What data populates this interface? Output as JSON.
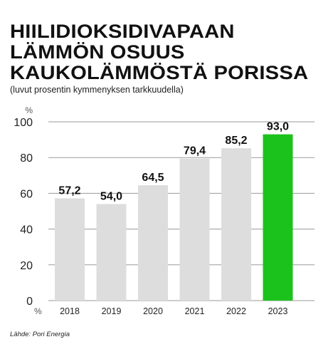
{
  "title_lines": [
    "HIILIDIOKSIDIVAPAAN",
    "LÄMMÖN OSUUS",
    "KAUKOLÄMMÖSTÄ PORISSA"
  ],
  "subtitle": "(luvut prosentin kymmenyksen tarkkuudella)",
  "source": "Lähde: Pori Energia",
  "chart_data": {
    "type": "bar",
    "categories": [
      "2018",
      "2019",
      "2020",
      "2021",
      "2022",
      "2023"
    ],
    "values": [
      57.2,
      54.0,
      64.5,
      79.4,
      85.2,
      93.0
    ],
    "value_labels": [
      "57,2",
      "54,0",
      "64,5",
      "79,4",
      "85,2",
      "93,0"
    ],
    "ylabel": "%",
    "xunit": "%",
    "ylim": [
      0,
      100
    ],
    "yticks": [
      0,
      20,
      40,
      60,
      80,
      100
    ],
    "grid": true,
    "highlight_index": 5,
    "colors": {
      "bar": "#dddddd",
      "highlight": "#1cc21c",
      "grid": "#9a9a9a"
    }
  }
}
